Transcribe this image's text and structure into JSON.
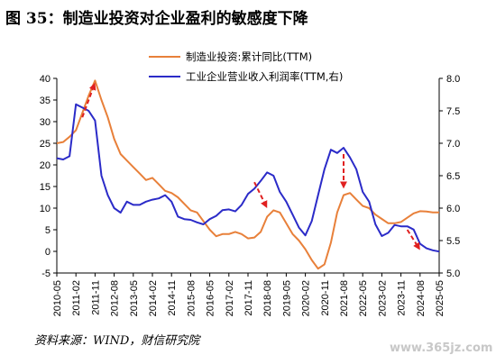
{
  "title": "图 35：制造业投资对企业盈利的敏感度下降",
  "source": "资料来源：WIND，财信研究院",
  "watermark": "www.365jz.com",
  "colors": {
    "manufacturing": "#E8803A",
    "profit": "#2B2BC8",
    "arrow": "#E02020"
  },
  "chart_data": {
    "type": "line",
    "left_axis": {
      "min": -5,
      "max": 40,
      "ticks": [
        -5,
        0,
        5,
        10,
        15,
        20,
        25,
        30,
        35,
        40
      ]
    },
    "right_axis": {
      "min": 5.0,
      "max": 8.0,
      "ticks": [
        "5.0",
        "5.5",
        "6.0",
        "6.5",
        "7.0",
        "7.5",
        "8.0"
      ]
    },
    "x_tick_labels": [
      "2010-05",
      "2011-02",
      "2011-11",
      "2012-08",
      "2013-05",
      "2014-02",
      "2014-11",
      "2015-08",
      "2016-05",
      "2017-02",
      "2017-11",
      "2018-08",
      "2019-05",
      "2020-02",
      "2020-11",
      "2021-08",
      "2022-05",
      "2023-02",
      "2023-11",
      "2024-08",
      "2025-05"
    ],
    "series": [
      {
        "name": "制造业投资:累计同比(TTM)",
        "axis": "left",
        "points": [
          [
            "2010-05",
            25
          ],
          [
            "2010-08",
            25.3
          ],
          [
            "2010-11",
            26.5
          ],
          [
            "2011-02",
            28
          ],
          [
            "2011-05",
            32
          ],
          [
            "2011-08",
            36
          ],
          [
            "2011-11",
            39.5
          ],
          [
            "2012-02",
            35
          ],
          [
            "2012-05",
            31
          ],
          [
            "2012-08",
            26
          ],
          [
            "2012-11",
            22.5
          ],
          [
            "2013-02",
            21
          ],
          [
            "2013-05",
            19.5
          ],
          [
            "2013-08",
            18
          ],
          [
            "2013-11",
            16.5
          ],
          [
            "2014-02",
            17
          ],
          [
            "2014-05",
            15.5
          ],
          [
            "2014-08",
            14
          ],
          [
            "2014-11",
            13.5
          ],
          [
            "2015-02",
            12.5
          ],
          [
            "2015-05",
            11
          ],
          [
            "2015-08",
            9.5
          ],
          [
            "2015-11",
            9
          ],
          [
            "2016-02",
            7
          ],
          [
            "2016-05",
            5
          ],
          [
            "2016-08",
            3.5
          ],
          [
            "2016-11",
            4
          ],
          [
            "2017-02",
            4
          ],
          [
            "2017-05",
            4.5
          ],
          [
            "2017-08",
            4
          ],
          [
            "2017-11",
            3
          ],
          [
            "2018-02",
            3.2
          ],
          [
            "2018-05",
            4.5
          ],
          [
            "2018-08",
            8
          ],
          [
            "2018-11",
            9.5
          ],
          [
            "2019-02",
            9
          ],
          [
            "2019-05",
            6.5
          ],
          [
            "2019-08",
            4
          ],
          [
            "2019-11",
            2.5
          ],
          [
            "2020-02",
            0.5
          ],
          [
            "2020-05",
            -2
          ],
          [
            "2020-08",
            -4
          ],
          [
            "2020-11",
            -3
          ],
          [
            "2021-02",
            2
          ],
          [
            "2021-05",
            9
          ],
          [
            "2021-08",
            13
          ],
          [
            "2021-11",
            13.5
          ],
          [
            "2022-02",
            12
          ],
          [
            "2022-05",
            10.5
          ],
          [
            "2022-08",
            10
          ],
          [
            "2022-11",
            8.5
          ],
          [
            "2023-02",
            7.5
          ],
          [
            "2023-05",
            6.5
          ],
          [
            "2023-08",
            6.5
          ],
          [
            "2023-11",
            6.8
          ],
          [
            "2024-02",
            7.8
          ],
          [
            "2024-05",
            8.8
          ],
          [
            "2024-08",
            9.3
          ],
          [
            "2024-11",
            9.2
          ],
          [
            "2025-02",
            9
          ],
          [
            "2025-05",
            9
          ]
        ]
      },
      {
        "name": "工业企业营业收入利润率(TTM,右)",
        "axis": "right",
        "points": [
          [
            "2010-05",
            6.77
          ],
          [
            "2010-08",
            6.75
          ],
          [
            "2010-11",
            6.8
          ],
          [
            "2011-02",
            7.6
          ],
          [
            "2011-05",
            7.55
          ],
          [
            "2011-08",
            7.5
          ],
          [
            "2011-11",
            7.35
          ],
          [
            "2012-02",
            6.5
          ],
          [
            "2012-05",
            6.2
          ],
          [
            "2012-08",
            6.0
          ],
          [
            "2012-11",
            5.93
          ],
          [
            "2013-02",
            6.1
          ],
          [
            "2013-05",
            6.05
          ],
          [
            "2013-08",
            6.05
          ],
          [
            "2013-11",
            6.1
          ],
          [
            "2014-02",
            6.13
          ],
          [
            "2014-05",
            6.15
          ],
          [
            "2014-08",
            6.2
          ],
          [
            "2014-11",
            6.1
          ],
          [
            "2015-02",
            5.87
          ],
          [
            "2015-05",
            5.83
          ],
          [
            "2015-08",
            5.82
          ],
          [
            "2015-11",
            5.78
          ],
          [
            "2016-02",
            5.75
          ],
          [
            "2016-05",
            5.83
          ],
          [
            "2016-08",
            5.88
          ],
          [
            "2016-11",
            5.97
          ],
          [
            "2017-02",
            5.98
          ],
          [
            "2017-05",
            5.95
          ],
          [
            "2017-08",
            6.05
          ],
          [
            "2017-11",
            6.22
          ],
          [
            "2018-02",
            6.3
          ],
          [
            "2018-05",
            6.42
          ],
          [
            "2018-08",
            6.55
          ],
          [
            "2018-11",
            6.5
          ],
          [
            "2019-02",
            6.25
          ],
          [
            "2019-05",
            6.1
          ],
          [
            "2019-08",
            5.9
          ],
          [
            "2019-11",
            5.7
          ],
          [
            "2020-02",
            5.58
          ],
          [
            "2020-05",
            5.8
          ],
          [
            "2020-08",
            6.2
          ],
          [
            "2020-11",
            6.6
          ],
          [
            "2021-02",
            6.9
          ],
          [
            "2021-05",
            6.85
          ],
          [
            "2021-08",
            6.93
          ],
          [
            "2021-11",
            6.78
          ],
          [
            "2022-02",
            6.6
          ],
          [
            "2022-05",
            6.25
          ],
          [
            "2022-08",
            6.1
          ],
          [
            "2022-11",
            5.75
          ],
          [
            "2023-02",
            5.57
          ],
          [
            "2023-05",
            5.62
          ],
          [
            "2023-08",
            5.74
          ],
          [
            "2023-11",
            5.72
          ],
          [
            "2024-02",
            5.72
          ],
          [
            "2024-05",
            5.67
          ],
          [
            "2024-08",
            5.45
          ],
          [
            "2024-11",
            5.38
          ],
          [
            "2025-02",
            5.35
          ],
          [
            "2025-05",
            5.33
          ]
        ]
      }
    ],
    "annotations": [
      {
        "type": "arrow",
        "axis": "left",
        "from": [
          "2011-05",
          31
        ],
        "to": [
          "2011-11",
          39
        ]
      },
      {
        "type": "arrow",
        "axis": "left",
        "from": [
          "2018-02",
          16
        ],
        "to": [
          "2018-08",
          10
        ]
      },
      {
        "type": "arrow",
        "axis": "left",
        "from": [
          "2021-08",
          22.5
        ],
        "to": [
          "2021-08",
          14.5
        ]
      },
      {
        "type": "arrow",
        "axis": "left",
        "from": [
          "2024-02",
          5
        ],
        "to": [
          "2024-08",
          0.3
        ]
      }
    ],
    "legend_position": "top-center",
    "grid": false
  }
}
